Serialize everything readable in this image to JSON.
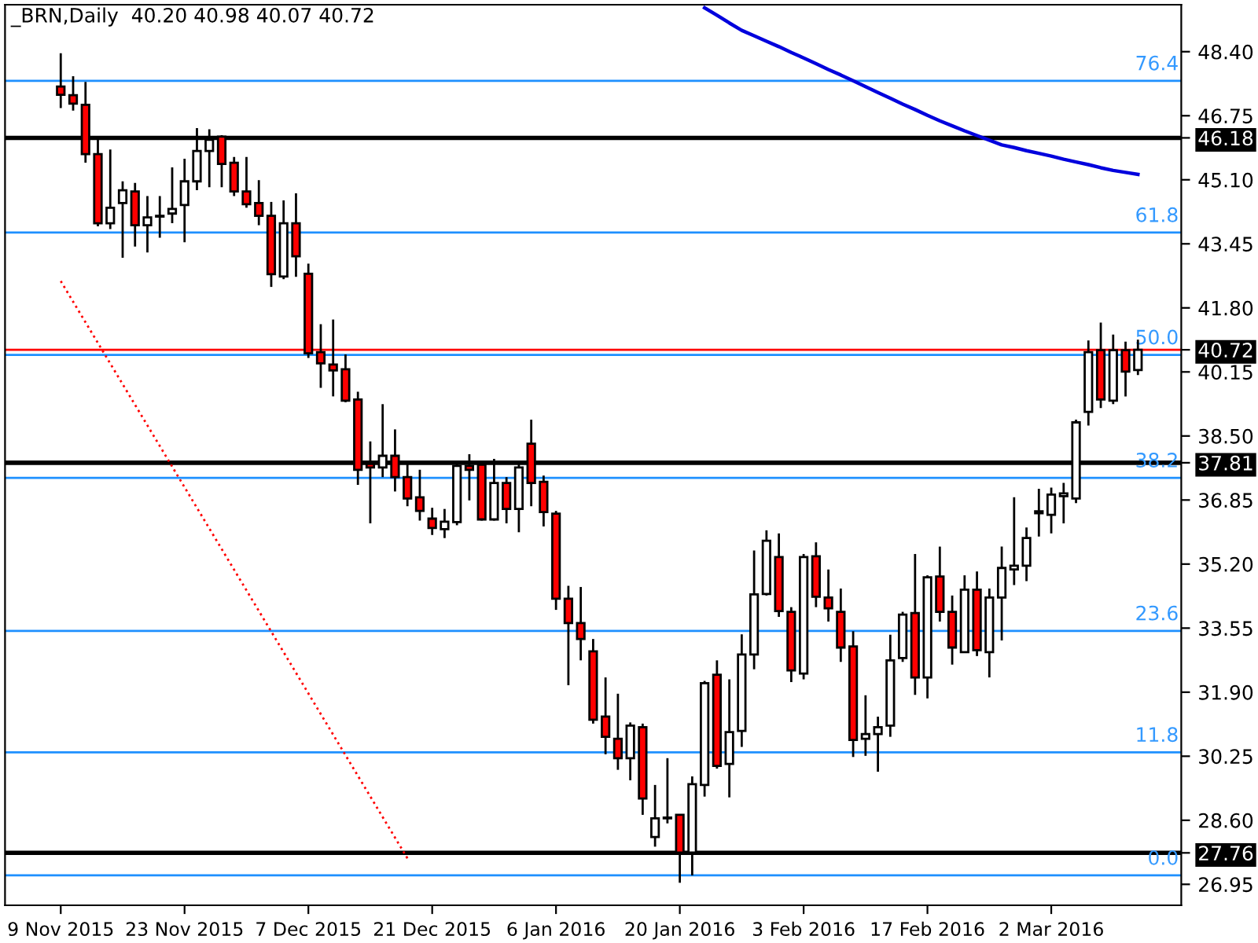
{
  "chart_data": {
    "type": "candlestick",
    "title": "_BRN,Daily  40.20 40.98 40.07 40.72",
    "categories": [
      "9 Nov 2015",
      null,
      null,
      null,
      null,
      null,
      null,
      null,
      null,
      null,
      "23 Nov 2015",
      null,
      null,
      null,
      null,
      null,
      null,
      null,
      null,
      null,
      "7 Dec 2015",
      null,
      null,
      null,
      null,
      null,
      null,
      null,
      null,
      null,
      "21 Dec 2015",
      null,
      null,
      null,
      null,
      null,
      null,
      null,
      null,
      null,
      "6 Jan 2016",
      null,
      null,
      null,
      null,
      null,
      null,
      null,
      null,
      null,
      "20 Jan 2016",
      null,
      null,
      null,
      null,
      null,
      null,
      null,
      null,
      null,
      "3 Feb 2016",
      null,
      null,
      null,
      null,
      null,
      null,
      null,
      null,
      null,
      "17 Feb 2016",
      null,
      null,
      null,
      null,
      null,
      null,
      null,
      null,
      null,
      "2 Mar 2016",
      null,
      null,
      null,
      null,
      null,
      null,
      null
    ],
    "ohlc": [
      [
        47.5,
        48.36,
        46.95,
        47.29
      ],
      [
        47.28,
        47.77,
        46.88,
        47.06
      ],
      [
        47.03,
        47.62,
        45.54,
        45.76
      ],
      [
        45.76,
        46.13,
        43.9,
        43.98
      ],
      [
        43.98,
        45.88,
        43.83,
        44.38
      ],
      [
        44.5,
        45.06,
        43.09,
        44.83
      ],
      [
        44.8,
        45.02,
        43.38,
        43.93
      ],
      [
        43.93,
        44.68,
        43.23,
        44.13
      ],
      [
        44.15,
        44.68,
        43.61,
        44.16
      ],
      [
        44.23,
        45.42,
        43.98,
        44.35
      ],
      [
        44.45,
        45.64,
        43.49,
        45.06
      ],
      [
        45.06,
        46.43,
        44.83,
        45.84
      ],
      [
        45.84,
        46.4,
        44.91,
        46.13
      ],
      [
        46.21,
        46.25,
        44.91,
        45.51
      ],
      [
        45.54,
        45.69,
        44.68,
        44.8
      ],
      [
        44.8,
        45.69,
        44.38,
        44.47
      ],
      [
        44.5,
        45.09,
        43.93,
        44.17
      ],
      [
        44.17,
        44.53,
        42.34,
        42.67
      ],
      [
        42.61,
        44.57,
        42.54,
        43.98
      ],
      [
        43.98,
        44.75,
        42.6,
        43.13
      ],
      [
        42.68,
        42.94,
        40.51,
        40.63
      ],
      [
        40.66,
        41.38,
        39.74,
        40.37
      ],
      [
        40.34,
        41.5,
        39.52,
        40.19
      ],
      [
        40.22,
        40.6,
        39.37,
        39.41
      ],
      [
        39.44,
        39.64,
        37.24,
        37.63
      ],
      [
        37.78,
        38.36,
        36.25,
        37.69
      ],
      [
        37.69,
        39.32,
        37.44,
        37.99
      ],
      [
        37.99,
        38.67,
        37.07,
        37.44
      ],
      [
        37.44,
        37.85,
        36.69,
        36.89
      ],
      [
        36.92,
        37.63,
        36.32,
        36.57
      ],
      [
        36.37,
        36.65,
        35.95,
        36.13
      ],
      [
        36.1,
        36.62,
        35.87,
        36.29
      ],
      [
        36.28,
        37.81,
        36.2,
        37.73
      ],
      [
        37.73,
        38.03,
        36.84,
        37.63
      ],
      [
        37.76,
        37.81,
        36.32,
        36.35
      ],
      [
        36.35,
        37.91,
        36.32,
        37.29
      ],
      [
        37.29,
        37.44,
        36.25,
        36.62
      ],
      [
        36.62,
        37.84,
        36.02,
        37.69
      ],
      [
        38.3,
        38.92,
        36.69,
        37.29
      ],
      [
        37.32,
        37.48,
        36.17,
        36.54
      ],
      [
        36.5,
        36.57,
        34.02,
        34.31
      ],
      [
        34.31,
        34.64,
        32.08,
        33.68
      ],
      [
        33.68,
        34.61,
        32.72,
        33.27
      ],
      [
        32.95,
        33.27,
        31.09,
        31.19
      ],
      [
        31.27,
        32.28,
        30.3,
        30.75
      ],
      [
        30.7,
        31.86,
        29.9,
        30.2
      ],
      [
        30.2,
        31.12,
        29.63,
        31.04
      ],
      [
        31.0,
        31.09,
        28.74,
        29.16
      ],
      [
        28.17,
        29.51,
        27.92,
        28.65
      ],
      [
        28.67,
        30.2,
        28.52,
        28.65
      ],
      [
        28.74,
        28.74,
        26.99,
        27.77
      ],
      [
        27.77,
        29.73,
        27.18,
        29.53
      ],
      [
        29.51,
        32.19,
        29.21,
        32.13
      ],
      [
        32.35,
        32.72,
        29.93,
        30.0
      ],
      [
        30.05,
        32.23,
        29.19,
        30.87
      ],
      [
        30.9,
        33.39,
        30.49,
        32.87
      ],
      [
        32.87,
        35.55,
        32.49,
        34.42
      ],
      [
        34.43,
        36.07,
        34.39,
        35.8
      ],
      [
        35.38,
        35.99,
        33.84,
        33.99
      ],
      [
        33.97,
        34.09,
        32.16,
        32.46
      ],
      [
        32.38,
        35.46,
        32.23,
        35.38
      ],
      [
        35.4,
        35.76,
        34.09,
        34.36
      ],
      [
        34.34,
        35.06,
        33.72,
        34.06
      ],
      [
        33.97,
        34.57,
        32.68,
        33.05
      ],
      [
        33.08,
        33.47,
        30.23,
        30.67
      ],
      [
        30.7,
        31.82,
        30.26,
        30.82
      ],
      [
        30.82,
        31.27,
        29.85,
        31.0
      ],
      [
        31.04,
        33.38,
        30.75,
        32.72
      ],
      [
        32.78,
        33.97,
        32.68,
        33.9
      ],
      [
        33.94,
        35.46,
        31.83,
        32.28
      ],
      [
        32.28,
        34.91,
        31.74,
        34.86
      ],
      [
        34.88,
        35.65,
        33.72,
        33.97
      ],
      [
        33.97,
        34.39,
        32.61,
        33.05
      ],
      [
        32.93,
        34.91,
        32.93,
        34.54
      ],
      [
        34.54,
        35.01,
        32.83,
        32.98
      ],
      [
        32.93,
        34.57,
        32.28,
        34.34
      ],
      [
        34.34,
        35.65,
        33.23,
        35.1
      ],
      [
        35.06,
        36.92,
        34.66,
        35.16
      ],
      [
        35.16,
        36.14,
        34.76,
        35.87
      ],
      [
        36.51,
        37.14,
        35.91,
        36.56
      ],
      [
        36.47,
        37.17,
        35.99,
        36.99
      ],
      [
        36.95,
        37.29,
        36.25,
        37.02
      ],
      [
        36.89,
        38.92,
        36.77,
        38.85
      ],
      [
        39.12,
        40.96,
        38.77,
        40.66
      ],
      [
        40.71,
        41.42,
        39.22,
        39.44
      ],
      [
        39.41,
        41.11,
        39.32,
        40.71
      ],
      [
        40.71,
        40.93,
        39.52,
        40.16
      ],
      [
        40.2,
        40.98,
        40.07,
        40.72
      ]
    ],
    "series": [
      {
        "type": "line",
        "color": "#0000dd",
        "values": [
          null,
          null,
          null,
          null,
          null,
          null,
          null,
          null,
          null,
          null,
          null,
          null,
          null,
          null,
          null,
          null,
          null,
          null,
          null,
          null,
          null,
          null,
          null,
          null,
          null,
          null,
          null,
          null,
          null,
          null,
          null,
          null,
          null,
          null,
          null,
          null,
          null,
          null,
          null,
          null,
          null,
          null,
          null,
          null,
          null,
          null,
          null,
          null,
          null,
          null,
          null,
          null,
          49.53,
          49.34,
          49.14,
          48.95,
          48.81,
          48.67,
          48.53,
          48.38,
          48.24,
          48.09,
          47.94,
          47.8,
          47.65,
          47.5,
          47.35,
          47.2,
          47.05,
          46.91,
          46.76,
          46.62,
          46.49,
          46.36,
          46.24,
          46.12,
          46.0,
          45.93,
          45.85,
          45.78,
          45.71,
          45.63,
          45.56,
          45.49,
          45.41,
          45.34,
          45.29,
          45.24
        ]
      },
      {
        "type": "line",
        "color": "#ff0000",
        "line_style": "dotted",
        "values": [
          42.49,
          null,
          null,
          null,
          null,
          null,
          null,
          null,
          null,
          null,
          null,
          null,
          null,
          null,
          null,
          null,
          null,
          null,
          null,
          null,
          null,
          null,
          null,
          null,
          null,
          null,
          null,
          null,
          27.62,
          null,
          null,
          null,
          null,
          null,
          null,
          null,
          null,
          null,
          null,
          null,
          null,
          null,
          null,
          null,
          null,
          null,
          null,
          null,
          null,
          null,
          null,
          null,
          null,
          null,
          null,
          null,
          null,
          null,
          null,
          null,
          null,
          null,
          null,
          null,
          null,
          null,
          null,
          null,
          null,
          null,
          null,
          null,
          null,
          null,
          null,
          null,
          null,
          null,
          null,
          null,
          null,
          null,
          null,
          null,
          null,
          null,
          null,
          null
        ]
      }
    ],
    "ylim": [
      26.41,
      49.61
    ],
    "yticks": [
      {
        "value": 48.4,
        "label": "48.40"
      },
      {
        "value": 46.75,
        "label": "46.75"
      },
      {
        "value": 46.18,
        "label": "46.18"
      },
      {
        "value": 45.1,
        "label": "45.10"
      },
      {
        "value": 43.45,
        "label": "43.45"
      },
      {
        "value": 41.8,
        "label": "41.80"
      },
      {
        "value": 40.72,
        "label": "40.72"
      },
      {
        "value": 40.15,
        "label": "40.15"
      },
      {
        "value": 38.5,
        "label": "38.50"
      },
      {
        "value": 37.81,
        "label": "37.81"
      },
      {
        "value": 36.85,
        "label": "36.85"
      },
      {
        "value": 35.2,
        "label": "35.20"
      },
      {
        "value": 33.55,
        "label": "33.55"
      },
      {
        "value": 31.9,
        "label": "31.90"
      },
      {
        "value": 30.25,
        "label": "30.25"
      },
      {
        "value": 28.6,
        "label": "28.60"
      },
      {
        "value": 27.76,
        "label": "27.76"
      },
      {
        "value": 26.95,
        "label": "26.95"
      }
    ],
    "ref_lines": [
      {
        "axis": "y",
        "value": 46.18,
        "color": "#000000"
      },
      {
        "axis": "y",
        "value": 37.81,
        "color": "#000000"
      },
      {
        "axis": "y",
        "value": 27.76,
        "color": "#000000"
      },
      {
        "axis": "y",
        "value": 40.72,
        "color": "#ff0000"
      },
      {
        "axis": "y",
        "value": 47.65,
        "color": "#1e90ff"
      },
      {
        "axis": "y",
        "value": 43.74,
        "color": "#1e90ff"
      },
      {
        "axis": "y",
        "value": 40.59,
        "color": "#1e90ff"
      },
      {
        "axis": "y",
        "value": 37.42,
        "color": "#1e90ff"
      },
      {
        "axis": "y",
        "value": 33.48,
        "color": "#1e90ff"
      },
      {
        "axis": "y",
        "value": 30.35,
        "color": "#1e90ff"
      },
      {
        "axis": "y",
        "value": 27.18,
        "color": "#1e90ff"
      }
    ],
    "annotations": [
      {
        "text": "76.4",
        "y": 47.65
      },
      {
        "text": "61.8",
        "y": 43.74
      },
      {
        "text": "50.0",
        "y": 40.59
      },
      {
        "text": "38.2",
        "y": 37.42
      },
      {
        "text": "23.6",
        "y": 33.48
      },
      {
        "text": "11.8",
        "y": 30.35
      },
      {
        "text": "0.0",
        "y": 27.18
      }
    ]
  }
}
